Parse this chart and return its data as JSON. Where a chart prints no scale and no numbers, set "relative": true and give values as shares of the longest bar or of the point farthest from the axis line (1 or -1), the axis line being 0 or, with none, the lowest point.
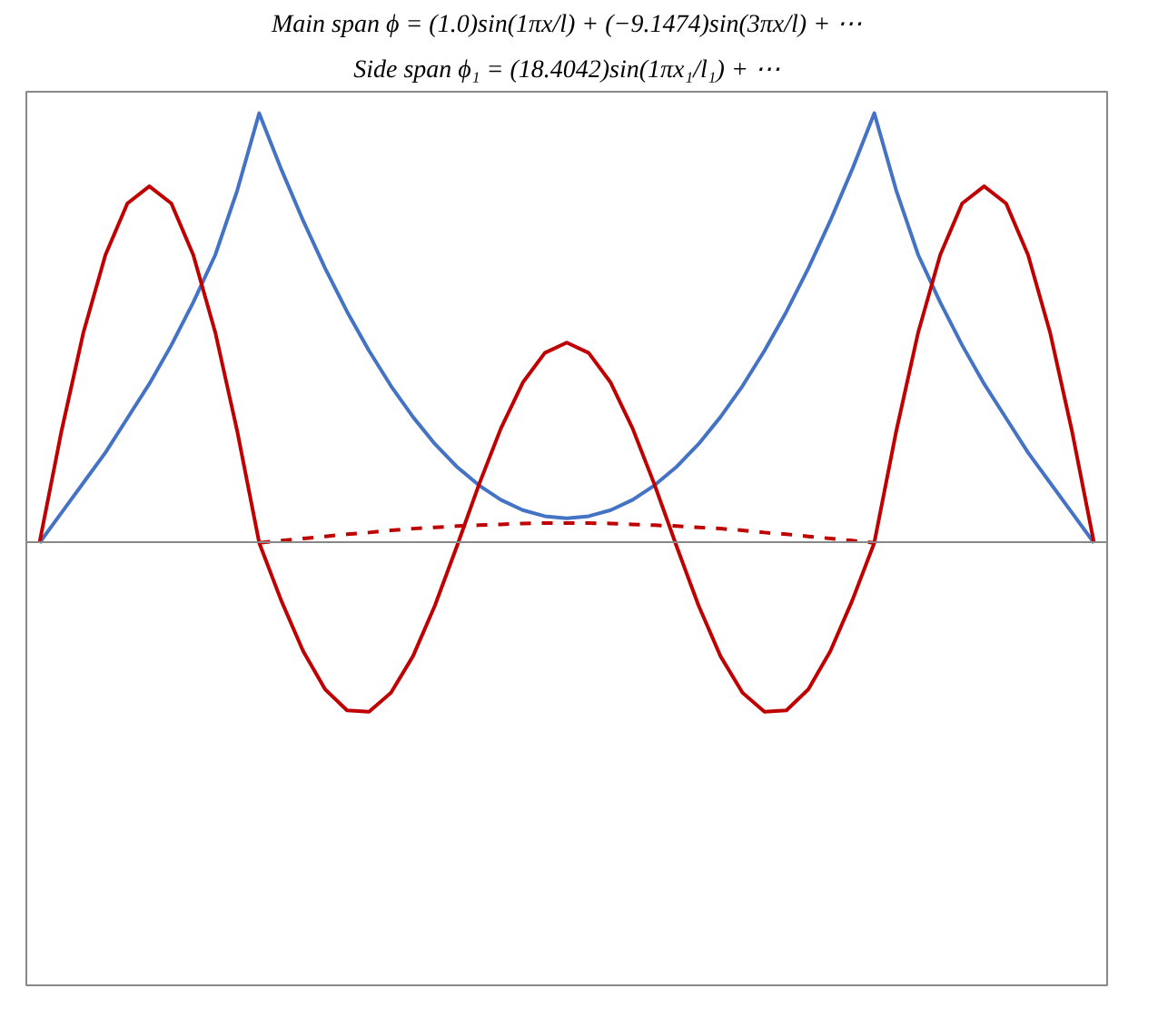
{
  "chart_data": {
    "type": "line",
    "title": "Main span ϕ = (1.0)sin(1πx/l) + (−9.1474)sin(3πx/l) + ⋯",
    "subtitle": "Side span ϕ₁ = (18.4042)sin(1πx₁/l₁) + ⋯",
    "relative": true,
    "grid": false,
    "marker": "none",
    "categories": [
      null,
      null,
      null,
      null,
      null,
      null,
      null,
      null,
      null,
      null,
      null,
      null,
      null,
      null,
      null,
      null,
      null,
      null,
      null,
      null,
      null,
      null,
      null,
      null,
      null,
      null,
      null,
      null,
      null,
      null,
      null,
      null,
      null,
      null,
      null,
      null,
      null,
      null,
      null,
      null,
      null,
      null,
      null,
      null,
      null,
      null,
      null,
      null,
      null
    ],
    "series": [
      {
        "color": "#4472c4",
        "line_style": "solid",
        "values": [
          0,
          0.07,
          0.14,
          0.21,
          0.29,
          0.37,
          0.46,
          0.56,
          0.67,
          0.82,
          1,
          0.87,
          0.75,
          0.639,
          0.538,
          0.447,
          0.365,
          0.293,
          0.23,
          0.177,
          0.134,
          0.1,
          0.076,
          0.062,
          0.057,
          0.062,
          0.076,
          0.1,
          0.134,
          0.177,
          0.23,
          0.293,
          0.365,
          0.447,
          0.538,
          0.639,
          0.75,
          0.87,
          1,
          0.82,
          0.67,
          0.56,
          0.46,
          0.37,
          0.29,
          0.21,
          0.14,
          0.07,
          0
        ]
      },
      {
        "color": "#c00000",
        "line_style": "solid",
        "values": [
          0,
          0.26,
          0.49,
          0.67,
          0.79,
          0.83,
          0.79,
          0.67,
          0.49,
          0.26,
          0,
          -0.134,
          -0.252,
          -0.341,
          -0.39,
          -0.393,
          -0.349,
          -0.264,
          -0.146,
          -0.008,
          0.135,
          0.266,
          0.373,
          0.442,
          0.466,
          0.442,
          0.373,
          0.266,
          0.135,
          -0.008,
          -0.146,
          -0.264,
          -0.349,
          -0.393,
          -0.39,
          -0.341,
          -0.252,
          -0.134,
          0,
          0.26,
          0.49,
          0.67,
          0.79,
          0.83,
          0.79,
          0.67,
          0.49,
          0.26,
          0
        ]
      },
      {
        "color": "#c00000",
        "line_style": "dashed",
        "values": [
          null,
          null,
          null,
          null,
          null,
          null,
          null,
          null,
          null,
          null,
          0,
          0.005,
          0.01,
          0.015,
          0.02,
          0.024,
          0.029,
          0.033,
          0.036,
          0.039,
          0.041,
          0.043,
          0.045,
          0.046,
          0.046,
          0.046,
          0.045,
          0.043,
          0.041,
          0.039,
          0.036,
          0.033,
          0.029,
          0.024,
          0.02,
          0.015,
          0.01,
          0.005,
          0,
          null,
          null,
          null,
          null,
          null,
          null,
          null,
          null,
          null,
          null
        ]
      }
    ]
  }
}
